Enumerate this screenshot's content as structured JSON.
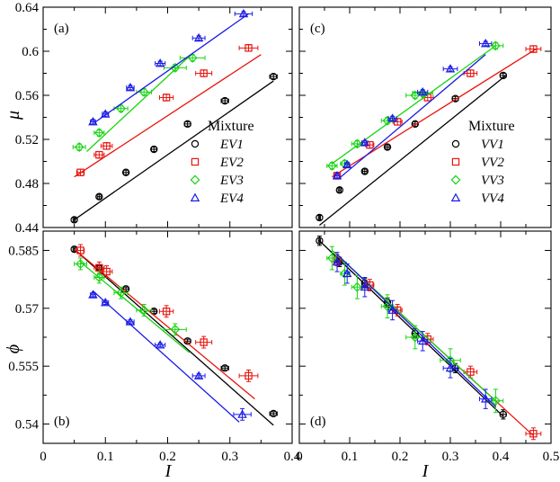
{
  "figure": {
    "xlabel": "I",
    "ylabel_top": "μ",
    "ylabel_bottom": "ϕ"
  },
  "series_colors": [
    "#000000",
    "#e8150f",
    "#17d411",
    "#1a1ae6"
  ],
  "series_markers": [
    "circle",
    "square",
    "diamond",
    "triangle"
  ],
  "chart_data": [
    {
      "id": "a",
      "type": "line",
      "panel_label": "(a)",
      "xlim": [
        0,
        0.4
      ],
      "ylim": [
        0.44,
        0.64
      ],
      "xticks": [
        0,
        0.1,
        0.2,
        0.3
      ],
      "xtick_labels": [
        "0",
        "0.1",
        "0.2",
        "0.3"
      ],
      "yticks": [
        0.44,
        0.48,
        0.52,
        0.56,
        0.6,
        0.64
      ],
      "ytick_labels": [
        "0.44",
        "0.48",
        "0.52",
        "0.56",
        "0.6",
        "0.64"
      ],
      "legend_title": "Mixture",
      "series": [
        {
          "name": "EV1",
          "x": [
            0.05,
            0.09,
            0.133,
            0.178,
            0.232,
            0.292,
            0.37
          ],
          "y": [
            0.447,
            0.468,
            0.49,
            0.511,
            0.534,
            0.555,
            0.577
          ],
          "xerr": [
            0.002,
            0.003,
            0.004,
            0.004,
            0.005,
            0.006,
            0.006
          ],
          "yerr": [
            0.002,
            0.002,
            0.002,
            0.002,
            0.002,
            0.002,
            0.002
          ],
          "fit_x": [
            0.05,
            0.37
          ],
          "fit_y": [
            0.447,
            0.573
          ]
        },
        {
          "name": "EV2",
          "x": [
            0.06,
            0.09,
            0.102,
            0.198,
            0.258,
            0.33
          ],
          "y": [
            0.49,
            0.506,
            0.514,
            0.558,
            0.58,
            0.603
          ],
          "xerr": [
            0.006,
            0.008,
            0.009,
            0.011,
            0.013,
            0.015
          ],
          "yerr": [
            0.003,
            0.003,
            0.003,
            0.003,
            0.003,
            0.003
          ],
          "fit_x": [
            0.05,
            0.35
          ],
          "fit_y": [
            0.486,
            0.597
          ]
        },
        {
          "name": "EV3",
          "x": [
            0.058,
            0.09,
            0.125,
            0.162,
            0.212,
            0.24
          ],
          "y": [
            0.513,
            0.526,
            0.548,
            0.563,
            0.585,
            0.594
          ],
          "xerr": [
            0.01,
            0.008,
            0.011,
            0.012,
            0.018,
            0.02
          ],
          "yerr": [
            0.003,
            0.003,
            0.003,
            0.003,
            0.003,
            0.003
          ],
          "fit_x": [
            0.07,
            0.232
          ],
          "fit_y": [
            0.509,
            0.594
          ]
        },
        {
          "name": "EV4",
          "x": [
            0.08,
            0.1,
            0.14,
            0.188,
            0.25,
            0.322
          ],
          "y": [
            0.536,
            0.543,
            0.567,
            0.589,
            0.612,
            0.634
          ],
          "xerr": [
            0.004,
            0.005,
            0.006,
            0.008,
            0.01,
            0.014
          ],
          "yerr": [
            0.002,
            0.002,
            0.002,
            0.002,
            0.002,
            0.002
          ],
          "fit_x": [
            0.082,
            0.33
          ],
          "fit_y": [
            0.535,
            0.634
          ]
        }
      ]
    },
    {
      "id": "b",
      "type": "line",
      "panel_label": "(b)",
      "xlim": [
        0,
        0.4
      ],
      "ylim": [
        0.535,
        0.59
      ],
      "xticks": [
        0,
        0.1,
        0.2,
        0.3,
        0.4
      ],
      "xtick_labels": [
        "0",
        "0.1",
        "0.2",
        "0.3",
        "0.4"
      ],
      "yticks": [
        0.54,
        0.555,
        0.57,
        0.585
      ],
      "ytick_labels": [
        "0.54",
        "0.555",
        "0.57",
        "0.585"
      ],
      "series": [
        {
          "name": "EV1",
          "x": [
            0.05,
            0.09,
            0.133,
            0.178,
            0.232,
            0.292,
            0.37
          ],
          "y": [
            0.5853,
            0.5805,
            0.575,
            0.5692,
            0.5615,
            0.5545,
            0.5427
          ],
          "xerr": [
            0.002,
            0.003,
            0.004,
            0.004,
            0.005,
            0.006,
            0.006
          ],
          "yerr": [
            0.0005,
            0.0005,
            0.0005,
            0.0005,
            0.0005,
            0.0005,
            0.0005
          ],
          "fit_x": [
            0.05,
            0.37
          ],
          "fit_y": [
            0.5853,
            0.5397
          ]
        },
        {
          "name": "EV2",
          "x": [
            0.06,
            0.09,
            0.102,
            0.198,
            0.258,
            0.33
          ],
          "y": [
            0.585,
            0.5805,
            0.5795,
            0.5692,
            0.5612,
            0.5525
          ],
          "xerr": [
            0.006,
            0.008,
            0.009,
            0.011,
            0.013,
            0.015
          ],
          "yerr": [
            0.0015,
            0.0015,
            0.0015,
            0.0015,
            0.0015,
            0.0015
          ],
          "fit_x": [
            0.05,
            0.34
          ],
          "fit_y": [
            0.5853,
            0.5465
          ]
        },
        {
          "name": "EV3",
          "x": [
            0.06,
            0.09,
            0.125,
            0.162,
            0.212
          ],
          "y": [
            0.5815,
            0.578,
            0.574,
            0.5695,
            0.5645
          ],
          "xerr": [
            0.01,
            0.008,
            0.011,
            0.012,
            0.018
          ],
          "yerr": [
            0.0015,
            0.0015,
            0.0015,
            0.0015,
            0.0015
          ],
          "fit_x": [
            0.06,
            0.235
          ],
          "fit_y": [
            0.582,
            0.5585
          ]
        },
        {
          "name": "EV4",
          "x": [
            0.08,
            0.1,
            0.14,
            0.188,
            0.25,
            0.32
          ],
          "y": [
            0.5735,
            0.5715,
            0.5665,
            0.5605,
            0.5525,
            0.5425
          ],
          "xerr": [
            0.004,
            0.005,
            0.006,
            0.008,
            0.01,
            0.014
          ],
          "yerr": [
            0.0005,
            0.0005,
            0.0005,
            0.0005,
            0.0005,
            0.0015
          ],
          "fit_x": [
            0.08,
            0.315
          ],
          "fit_y": [
            0.5745,
            0.5405
          ]
        }
      ]
    },
    {
      "id": "c",
      "type": "line",
      "panel_label": "(c)",
      "xlim": [
        0,
        0.5
      ],
      "ylim": [
        0.44,
        0.64
      ],
      "xticks": [
        0,
        0.1,
        0.2,
        0.3,
        0.4,
        0.5
      ],
      "xtick_labels": [
        "0",
        "0.1",
        "0.2",
        "0.3",
        "0.4",
        "0.5"
      ],
      "yticks": [
        0.44,
        0.48,
        0.52,
        0.56,
        0.6,
        0.64
      ],
      "ytick_labels": [],
      "legend_title": "Mixture",
      "series": [
        {
          "name": "VV1",
          "x": [
            0.04,
            0.08,
            0.13,
            0.175,
            0.23,
            0.31,
            0.405
          ],
          "y": [
            0.449,
            0.474,
            0.491,
            0.513,
            0.534,
            0.557,
            0.578
          ],
          "xerr": [
            0.002,
            0.003,
            0.004,
            0.004,
            0.005,
            0.006,
            0.006
          ],
          "yerr": [
            0.002,
            0.002,
            0.002,
            0.002,
            0.002,
            0.002,
            0.002
          ],
          "fit_x": [
            0.04,
            0.41
          ],
          "fit_y": [
            0.442,
            0.578
          ]
        },
        {
          "name": "VV2",
          "x": [
            0.075,
            0.14,
            0.195,
            0.255,
            0.34,
            0.465
          ],
          "y": [
            0.487,
            0.515,
            0.536,
            0.558,
            0.58,
            0.602
          ],
          "xerr": [
            0.006,
            0.008,
            0.009,
            0.011,
            0.013,
            0.015
          ],
          "yerr": [
            0.003,
            0.003,
            0.003,
            0.003,
            0.003,
            0.003
          ],
          "fit_x": [
            0.065,
            0.47
          ],
          "fit_y": [
            0.486,
            0.602
          ]
        },
        {
          "name": "VV3",
          "x": [
            0.065,
            0.09,
            0.115,
            0.175,
            0.23,
            0.245,
            0.39
          ],
          "y": [
            0.496,
            0.498,
            0.516,
            0.537,
            0.56,
            0.562,
            0.605
          ],
          "xerr": [
            0.01,
            0.008,
            0.011,
            0.012,
            0.018,
            0.02,
            0.015
          ],
          "yerr": [
            0.003,
            0.003,
            0.003,
            0.003,
            0.003,
            0.003,
            0.003
          ],
          "fit_x": [
            0.065,
            0.39
          ],
          "fit_y": [
            0.498,
            0.605
          ]
        },
        {
          "name": "VV4",
          "x": [
            0.075,
            0.095,
            0.13,
            0.185,
            0.245,
            0.3,
            0.37
          ],
          "y": [
            0.487,
            0.497,
            0.517,
            0.539,
            0.563,
            0.584,
            0.607
          ],
          "xerr": [
            0.004,
            0.005,
            0.006,
            0.008,
            0.01,
            0.014,
            0.012
          ],
          "yerr": [
            0.002,
            0.002,
            0.002,
            0.002,
            0.002,
            0.002,
            0.002
          ],
          "fit_x": [
            0.08,
            0.37
          ],
          "fit_y": [
            0.485,
            0.597
          ]
        }
      ]
    },
    {
      "id": "d",
      "type": "line",
      "panel_label": "(d)",
      "xlim": [
        0,
        0.5
      ],
      "ylim": [
        0.535,
        0.59
      ],
      "xticks": [
        0,
        0.1,
        0.2,
        0.3,
        0.4,
        0.5
      ],
      "xtick_labels": [
        "0",
        "0.1",
        "0.2",
        "0.3",
        "0.4",
        "0.5"
      ],
      "yticks": [
        0.54,
        0.555,
        0.57,
        0.585
      ],
      "ytick_labels": [],
      "series": [
        {
          "name": "VV1",
          "x": [
            0.04,
            0.08,
            0.13,
            0.175,
            0.23,
            0.31,
            0.405
          ],
          "y": [
            0.5875,
            0.582,
            0.5765,
            0.5715,
            0.5635,
            0.5545,
            0.5425
          ],
          "xerr": [
            0.002,
            0.003,
            0.004,
            0.004,
            0.005,
            0.006,
            0.006
          ],
          "yerr": [
            0.0012,
            0.0012,
            0.0012,
            0.0012,
            0.0012,
            0.0012,
            0.0012
          ],
          "fit_x": [
            0.04,
            0.405
          ],
          "fit_y": [
            0.5875,
            0.542
          ]
        },
        {
          "name": "VV2",
          "x": [
            0.075,
            0.14,
            0.195,
            0.255,
            0.34,
            0.465
          ],
          "y": [
            0.5825,
            0.576,
            0.5695,
            0.562,
            0.5535,
            0.5375
          ],
          "xerr": [
            0.006,
            0.008,
            0.009,
            0.011,
            0.013,
            0.015
          ],
          "yerr": [
            0.0015,
            0.0015,
            0.0015,
            0.0015,
            0.0015,
            0.0015
          ],
          "fit_x": [
            0.065,
            0.465
          ],
          "fit_y": [
            0.585,
            0.537
          ]
        },
        {
          "name": "VV3",
          "x": [
            0.065,
            0.09,
            0.115,
            0.175,
            0.23,
            0.3,
            0.39
          ],
          "y": [
            0.583,
            0.579,
            0.5755,
            0.5705,
            0.5625,
            0.5565,
            0.546
          ],
          "xerr": [
            0.01,
            0.008,
            0.011,
            0.012,
            0.018,
            0.02,
            0.015
          ],
          "yerr": [
            0.003,
            0.003,
            0.003,
            0.003,
            0.003,
            0.003,
            0.003
          ],
          "fit_x": [
            0.065,
            0.39
          ],
          "fit_y": [
            0.585,
            0.546
          ]
        },
        {
          "name": "VV4",
          "x": [
            0.075,
            0.095,
            0.13,
            0.185,
            0.245,
            0.3,
            0.37
          ],
          "y": [
            0.582,
            0.579,
            0.5755,
            0.5695,
            0.5615,
            0.5545,
            0.5465
          ],
          "xerr": [
            0.004,
            0.005,
            0.006,
            0.008,
            0.01,
            0.014,
            0.012
          ],
          "yerr": [
            0.0025,
            0.0025,
            0.0025,
            0.0025,
            0.0025,
            0.0025,
            0.0025
          ],
          "fit_x": [
            0.075,
            0.39
          ],
          "fit_y": [
            0.584,
            0.5445
          ]
        }
      ]
    }
  ]
}
